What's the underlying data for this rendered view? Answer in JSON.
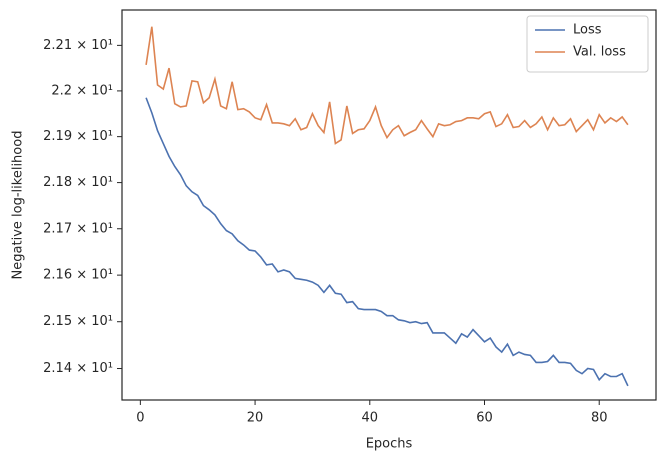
{
  "chart_data": {
    "type": "line",
    "x_label": "Epochs",
    "y_label": "Negative log-likelihood",
    "x": [
      1,
      2,
      3,
      4,
      5,
      6,
      7,
      8,
      9,
      10,
      11,
      12,
      13,
      14,
      15,
      16,
      17,
      18,
      19,
      20,
      21,
      22,
      23,
      24,
      25,
      26,
      27,
      28,
      29,
      30,
      31,
      32,
      33,
      34,
      35,
      36,
      37,
      38,
      39,
      40,
      41,
      42,
      43,
      44,
      45,
      46,
      47,
      48,
      49,
      50,
      51,
      52,
      53,
      54,
      55,
      56,
      57,
      58,
      59,
      60,
      61,
      62,
      63,
      64,
      65,
      66,
      67,
      68,
      69,
      70,
      71,
      72,
      73,
      74,
      75,
      76,
      77,
      78,
      79,
      80,
      81,
      82,
      83,
      84,
      85
    ],
    "series": [
      {
        "name": "Loss",
        "color": "#4c72b0",
        "values": [
          21.985,
          21.952,
          21.913,
          21.885,
          21.857,
          21.835,
          21.817,
          21.793,
          21.78,
          21.772,
          21.75,
          21.741,
          21.73,
          21.711,
          21.696,
          21.689,
          21.674,
          21.665,
          21.654,
          21.652,
          21.639,
          21.622,
          21.624,
          21.607,
          21.611,
          21.607,
          21.593,
          21.591,
          21.589,
          21.585,
          21.578,
          21.563,
          21.578,
          21.561,
          21.559,
          21.541,
          21.543,
          21.528,
          21.526,
          21.526,
          21.526,
          21.522,
          21.513,
          21.513,
          21.504,
          21.502,
          21.498,
          21.5,
          21.496,
          21.498,
          21.476,
          21.476,
          21.476,
          21.465,
          21.454,
          21.474,
          21.467,
          21.483,
          21.47,
          21.457,
          21.465,
          21.446,
          21.435,
          21.452,
          21.428,
          21.435,
          21.43,
          21.428,
          21.413,
          21.413,
          21.415,
          21.428,
          21.413,
          21.413,
          21.411,
          21.396,
          21.389,
          21.4,
          21.398,
          21.376,
          21.389,
          21.383,
          21.383,
          21.389,
          21.363
        ]
      },
      {
        "name": "Val. loss",
        "color": "#dd8452",
        "values": [
          22.057,
          22.141,
          22.013,
          22.004,
          22.05,
          21.972,
          21.965,
          21.967,
          22.022,
          22.02,
          21.974,
          21.985,
          22.026,
          21.967,
          21.961,
          22.02,
          21.959,
          21.961,
          21.954,
          21.941,
          21.937,
          21.97,
          21.93,
          21.93,
          21.928,
          21.924,
          21.939,
          21.915,
          21.92,
          21.95,
          21.924,
          21.909,
          21.976,
          21.885,
          21.893,
          21.967,
          21.907,
          21.915,
          21.917,
          21.935,
          21.965,
          21.924,
          21.898,
          21.915,
          21.924,
          21.902,
          21.909,
          21.915,
          21.935,
          21.917,
          21.9,
          21.928,
          21.924,
          21.926,
          21.933,
          21.935,
          21.941,
          21.941,
          21.939,
          21.95,
          21.954,
          21.922,
          21.928,
          21.948,
          21.92,
          21.922,
          21.935,
          21.92,
          21.928,
          21.943,
          21.915,
          21.941,
          21.924,
          21.926,
          21.939,
          21.911,
          21.924,
          21.937,
          21.915,
          21.948,
          21.93,
          21.941,
          21.933,
          21.943,
          21.926
        ]
      }
    ],
    "xlim": [
      -3.2,
      89.9
    ],
    "xticks": [
      0,
      20,
      40,
      60,
      80
    ],
    "ylim": [
      21.333,
      22.178
    ],
    "log_y": true,
    "yticks": [
      {
        "value": 21.4,
        "label": "2.14 × 10¹"
      },
      {
        "value": 21.5,
        "label": "2.15 × 10¹"
      },
      {
        "value": 21.6,
        "label": "2.16 × 10¹"
      },
      {
        "value": 21.7,
        "label": "2.17 × 10¹"
      },
      {
        "value": 21.8,
        "label": "2.18 × 10¹"
      },
      {
        "value": 21.9,
        "label": "2.19 × 10¹"
      },
      {
        "value": 22.0,
        "label": "2.2 × 10¹"
      },
      {
        "value": 22.1,
        "label": "2.21 × 10¹"
      }
    ],
    "grid": false,
    "legend": "upper right"
  }
}
